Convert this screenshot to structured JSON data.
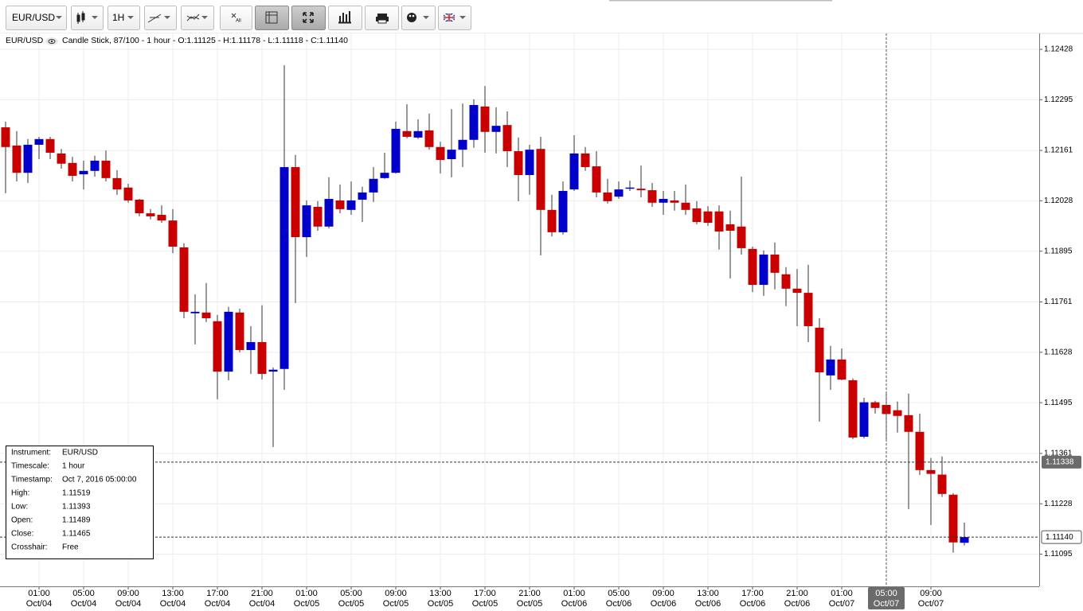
{
  "toolbar": {
    "symbol": "EUR/USD",
    "timeframe": "1H",
    "all_label": "All"
  },
  "chart_data": {
    "type": "candlestick",
    "title": "EUR/USD",
    "subtitle": "Candle Stick, 87/100 - 1 hour - O:1.11125 - H:1.11178 - L:1.11118 - C:1.11140",
    "up_color": "#0000c8",
    "down_color": "#c80000",
    "grid": true,
    "ylim": [
      1.1101,
      1.1247
    ],
    "yticks": [
      1.11095,
      1.11228,
      1.11361,
      1.11495,
      1.11628,
      1.11761,
      1.11895,
      1.12028,
      1.12161,
      1.12295,
      1.12428
    ],
    "categories": [
      null,
      null,
      null,
      [
        "01:00",
        "Oct/04"
      ],
      null,
      null,
      null,
      [
        "05:00",
        "Oct/04"
      ],
      null,
      null,
      null,
      [
        "09:00",
        "Oct/04"
      ],
      null,
      null,
      null,
      [
        "13:00",
        "Oct/04"
      ],
      null,
      null,
      null,
      [
        "17:00",
        "Oct/04"
      ],
      null,
      null,
      null,
      [
        "21:00",
        "Oct/04"
      ],
      null,
      null,
      null,
      [
        "01:00",
        "Oct/05"
      ],
      null,
      null,
      null,
      [
        "05:00",
        "Oct/05"
      ],
      null,
      null,
      null,
      [
        "09:00",
        "Oct/05"
      ],
      null,
      null,
      null,
      [
        "13:00",
        "Oct/05"
      ],
      null,
      null,
      null,
      [
        "17:00",
        "Oct/05"
      ],
      null,
      null,
      null,
      [
        "21:00",
        "Oct/05"
      ],
      null,
      null,
      null,
      [
        "01:00",
        "Oct/06"
      ],
      null,
      null,
      null,
      [
        "05:00",
        "Oct/06"
      ],
      null,
      null,
      null,
      [
        "09:00",
        "Oct/06"
      ],
      null,
      null,
      null,
      [
        "13:00",
        "Oct/06"
      ],
      null,
      null,
      null,
      [
        "17:00",
        "Oct/06"
      ],
      null,
      null,
      null,
      [
        "21:00",
        "Oct/06"
      ],
      null,
      null,
      null,
      [
        "01:00",
        "Oct/07"
      ],
      null,
      null,
      null,
      [
        "05:00",
        "Oct/07"
      ],
      null,
      null,
      null,
      [
        "09:00",
        "Oct/07"
      ],
      null,
      null,
      null
    ],
    "open": [
      1.12222,
      1.12174,
      1.12102,
      1.12176,
      1.12191,
      1.12153,
      1.12128,
      1.12098,
      1.12107,
      1.12134,
      1.12088,
      1.12063,
      1.12031,
      1.11995,
      1.11991,
      1.11976,
      1.11905,
      1.11731,
      1.11733,
      1.1171,
      1.11577,
      1.11733,
      1.11634,
      1.11655,
      1.11577,
      1.11584,
      1.12117,
      1.11932,
      1.12012,
      1.1196,
      1.12029,
      1.12004,
      1.12031,
      1.1205,
      1.12088,
      1.12102,
      1.12212,
      1.12195,
      1.12214,
      1.1217,
      1.12138,
      1.12163,
      1.12189,
      1.12277,
      1.1221,
      1.12228,
      1.12159,
      1.12096,
      1.12165,
      1.12004,
      1.11945,
      1.12058,
      1.12153,
      1.12119,
      1.1205,
      1.12039,
      1.1206,
      1.1206,
      1.12056,
      1.12023,
      1.12029,
      1.12023,
      1.12008,
      1.12,
      1.12,
      1.11966,
      1.1196,
      1.11901,
      1.11806,
      1.11886,
      1.11834,
      1.11796,
      1.11785,
      1.11693,
      1.11567,
      1.11609,
      1.11554,
      1.11405,
      1.11496,
      1.11489,
      1.11475,
      1.11462,
      1.11418,
      1.11317,
      1.11305,
      1.11252,
      1.11125
    ],
    "high": [
      1.12237,
      1.12212,
      1.12191,
      1.12197,
      1.12197,
      1.12165,
      1.12144,
      1.12134,
      1.12147,
      1.12161,
      1.12109,
      1.12073,
      1.12033,
      1.12006,
      1.12016,
      1.12006,
      1.11916,
      1.11781,
      1.11811,
      1.11727,
      1.11748,
      1.11743,
      1.11697,
      1.11752,
      1.11588,
      1.12386,
      1.12149,
      1.12029,
      1.12027,
      1.1209,
      1.12071,
      1.12079,
      1.12065,
      1.12117,
      1.12155,
      1.12237,
      1.12283,
      1.12243,
      1.12258,
      1.12184,
      1.1227,
      1.12285,
      1.12296,
      1.12331,
      1.12275,
      1.12264,
      1.12195,
      1.12176,
      1.12197,
      1.12044,
      1.12079,
      1.12201,
      1.1217,
      1.12159,
      1.12086,
      1.12079,
      1.12081,
      1.12121,
      1.12075,
      1.12054,
      1.12054,
      1.12071,
      1.12027,
      1.12014,
      1.12016,
      1.12002,
      1.12092,
      1.11907,
      1.11897,
      1.11918,
      1.11853,
      1.11848,
      1.11859,
      1.11718,
      1.11645,
      1.11638,
      1.11559,
      1.11508,
      1.115,
      1.11519,
      1.11498,
      1.11519,
      1.11466,
      1.11349,
      1.11353,
      1.11256,
      1.11178
    ],
    "low": [
      1.12048,
      1.12079,
      1.12075,
      1.12138,
      1.12138,
      1.12113,
      1.12079,
      1.12058,
      1.12092,
      1.12079,
      1.12044,
      1.12023,
      1.11987,
      1.11979,
      1.1197,
      1.1189,
      1.11718,
      1.11649,
      1.11708,
      1.11504,
      1.11554,
      1.11628,
      1.11571,
      1.11556,
      1.11378,
      1.11529,
      1.11758,
      1.1188,
      1.11949,
      1.11955,
      1.11995,
      1.11991,
      1.11972,
      1.12025,
      1.12086,
      1.121,
      1.12193,
      1.12191,
      1.12163,
      1.121,
      1.1209,
      1.12117,
      1.12168,
      1.12155,
      1.12153,
      1.12117,
      1.12027,
      1.12044,
      1.11884,
      1.11934,
      1.11939,
      1.12054,
      1.12107,
      1.12037,
      1.12021,
      1.12033,
      1.12054,
      1.12037,
      1.12012,
      1.11991,
      1.12002,
      1.11991,
      1.11966,
      1.11962,
      1.11899,
      1.11823,
      1.11886,
      1.11787,
      1.11777,
      1.11794,
      1.1175,
      1.11697,
      1.11655,
      1.11445,
      1.11529,
      1.11554,
      1.11399,
      1.11401,
      1.11466,
      1.11393,
      1.11416,
      1.11214,
      1.11304,
      1.11172,
      1.11246,
      1.11099,
      1.11118
    ],
    "close": [
      1.1217,
      1.12102,
      1.12176,
      1.12191,
      1.12155,
      1.12126,
      1.12094,
      1.12107,
      1.12134,
      1.12088,
      1.12058,
      1.12029,
      1.11995,
      1.11987,
      1.11976,
      1.11907,
      1.11735,
      1.11735,
      1.11718,
      1.11577,
      1.11735,
      1.11634,
      1.11655,
      1.11571,
      1.11582,
      1.12117,
      1.11932,
      1.12016,
      1.1196,
      1.12033,
      1.12006,
      1.12029,
      1.1205,
      1.12086,
      1.12102,
      1.12218,
      1.12197,
      1.12212,
      1.1217,
      1.12136,
      1.12163,
      1.12189,
      1.12281,
      1.1221,
      1.12226,
      1.12159,
      1.12096,
      1.12163,
      1.12004,
      1.11945,
      1.12054,
      1.12153,
      1.12117,
      1.1205,
      1.12027,
      1.12058,
      1.12063,
      1.12056,
      1.12023,
      1.12033,
      1.12023,
      1.12004,
      1.11972,
      1.1197,
      1.11947,
      1.11949,
      1.11903,
      1.11806,
      1.11886,
      1.11838,
      1.11796,
      1.11785,
      1.11697,
      1.11575,
      1.11609,
      1.11556,
      1.11403,
      1.11496,
      1.11481,
      1.11465,
      1.1146,
      1.11418,
      1.11317,
      1.11307,
      1.11254,
      1.11126,
      1.1114
    ],
    "last_price_label": "1.11140",
    "crosshair": {
      "price": 1.11338,
      "candle": 79
    },
    "info_panel": [
      [
        "Instrument:",
        "EUR/USD"
      ],
      [
        "Timescale:",
        "1 hour"
      ],
      [
        "Timestamp:",
        "Oct 7, 2016 05:00:00"
      ],
      [
        "High:",
        "1.11519"
      ],
      [
        "Low:",
        "1.11393"
      ],
      [
        "Open:",
        "1.11489"
      ],
      [
        "Close:",
        "1.11465"
      ],
      [
        "Crosshair:",
        "Free"
      ]
    ]
  }
}
